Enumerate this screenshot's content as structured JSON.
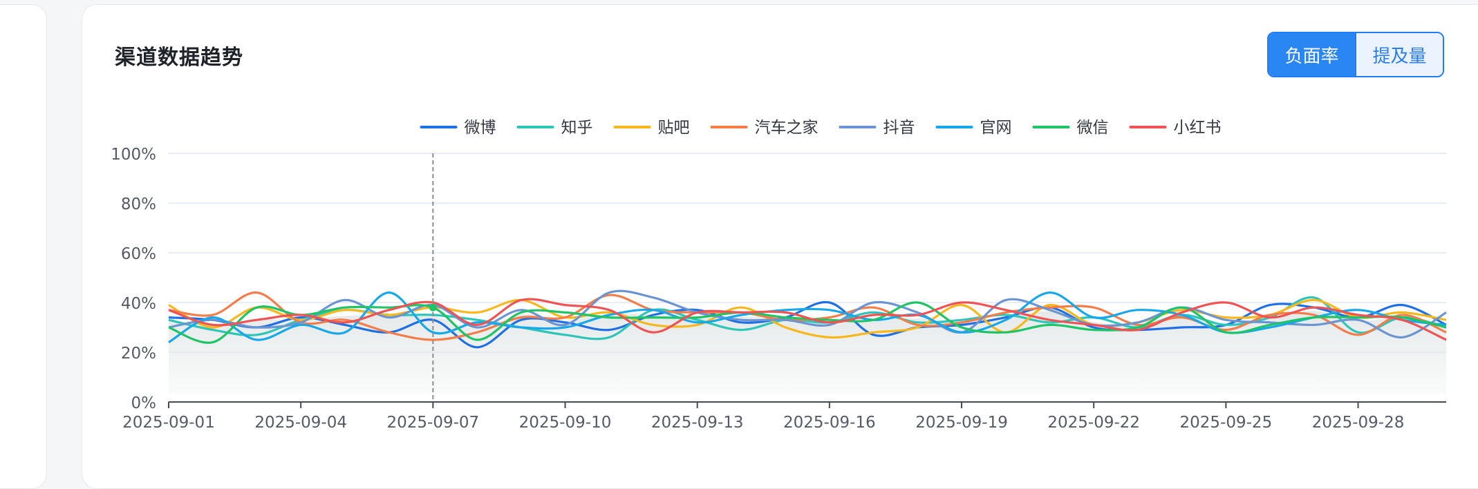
{
  "card": {
    "title": "渠道数据趋势"
  },
  "toggle": {
    "options": [
      {
        "label": "负面率",
        "active": true
      },
      {
        "label": "提及量",
        "active": false
      }
    ]
  },
  "colors": {
    "active_toggle": "#2a86f3",
    "gridline": "#e3e6f2",
    "crosshair": "#8c8c8c"
  },
  "chart_data": {
    "type": "line",
    "y_unit": "%",
    "ylim": [
      0,
      100
    ],
    "y_ticks": [
      "0%",
      "20%",
      "40%",
      "60%",
      "80%",
      "100%"
    ],
    "x_tick_labels": [
      "2025-09-01",
      "2025-09-04",
      "2025-09-07",
      "2025-09-10",
      "2025-09-13",
      "2025-09-16",
      "2025-09-19",
      "2025-09-22",
      "2025-09-25",
      "2025-09-28"
    ],
    "x": [
      "2025-09-01",
      "2025-09-02",
      "2025-09-03",
      "2025-09-04",
      "2025-09-05",
      "2025-09-06",
      "2025-09-07",
      "2025-09-08",
      "2025-09-09",
      "2025-09-10",
      "2025-09-11",
      "2025-09-12",
      "2025-09-13",
      "2025-09-14",
      "2025-09-15",
      "2025-09-16",
      "2025-09-17",
      "2025-09-18",
      "2025-09-19",
      "2025-09-20",
      "2025-09-21",
      "2025-09-22",
      "2025-09-23",
      "2025-09-24",
      "2025-09-25",
      "2025-09-26",
      "2025-09-27",
      "2025-09-28",
      "2025-09-29",
      "2025-09-30"
    ],
    "grid": true,
    "legend_position": "top-center",
    "hover_date": "2025-09-07",
    "series": [
      {
        "name": "微博",
        "color": "#1f6fe5",
        "values": [
          34,
          33,
          30,
          34,
          31,
          28,
          33,
          22,
          33,
          32,
          29,
          35,
          37,
          32,
          34,
          40,
          27,
          30,
          31,
          34,
          38,
          30,
          29,
          30,
          31,
          39,
          38,
          34,
          39,
          31
        ]
      },
      {
        "name": "知乎",
        "color": "#2ec5b9",
        "values": [
          33,
          29,
          27,
          33,
          37,
          35,
          35,
          33,
          30,
          27,
          26,
          37,
          33,
          29,
          33,
          32,
          36,
          32,
          33,
          35,
          32,
          34,
          30,
          35,
          31,
          34,
          42,
          28,
          34,
          30
        ]
      },
      {
        "name": "贴吧",
        "color": "#f7b71d",
        "values": [
          39,
          30,
          38,
          33,
          37,
          35,
          38,
          36,
          41,
          34,
          36,
          31,
          31,
          38,
          30,
          26,
          28,
          30,
          39,
          28,
          39,
          31,
          32,
          37,
          34,
          35,
          41,
          34,
          36,
          33
        ]
      },
      {
        "name": "汽车之家",
        "color": "#f47d49",
        "values": [
          37,
          35,
          44,
          32,
          33,
          28,
          25,
          28,
          34,
          34,
          43,
          37,
          36,
          36,
          33,
          34,
          38,
          31,
          32,
          36,
          38,
          38,
          31,
          34,
          29,
          35,
          35,
          27,
          35,
          28
        ]
      },
      {
        "name": "抖音",
        "color": "#6b94d2",
        "values": [
          30,
          33,
          30,
          32,
          41,
          34,
          39,
          30,
          37,
          31,
          44,
          42,
          36,
          33,
          33,
          31,
          40,
          36,
          28,
          41,
          37,
          31,
          32,
          38,
          33,
          32,
          31,
          33,
          26,
          36
        ]
      },
      {
        "name": "官网",
        "color": "#17a7eb",
        "values": [
          24,
          34,
          25,
          31,
          28,
          44,
          28,
          32,
          30,
          30,
          35,
          37,
          32,
          35,
          37,
          37,
          33,
          35,
          28,
          33,
          44,
          34,
          37,
          35,
          28,
          30,
          34,
          37,
          33,
          31
        ]
      },
      {
        "name": "微信",
        "color": "#1ec466",
        "values": [
          30,
          24,
          38,
          35,
          38,
          38,
          38,
          25,
          36,
          36,
          34,
          34,
          34,
          36,
          34,
          33,
          33,
          40,
          30,
          28,
          31,
          29,
          30,
          38,
          28,
          31,
          34,
          34,
          34,
          30
        ]
      },
      {
        "name": "小红书",
        "color": "#ef5353",
        "values": [
          37,
          31,
          33,
          35,
          32,
          37,
          40,
          31,
          41,
          39,
          37,
          28,
          36,
          36,
          36,
          32,
          35,
          35,
          40,
          37,
          33,
          31,
          29,
          36,
          40,
          34,
          38,
          35,
          33,
          25
        ]
      }
    ]
  }
}
